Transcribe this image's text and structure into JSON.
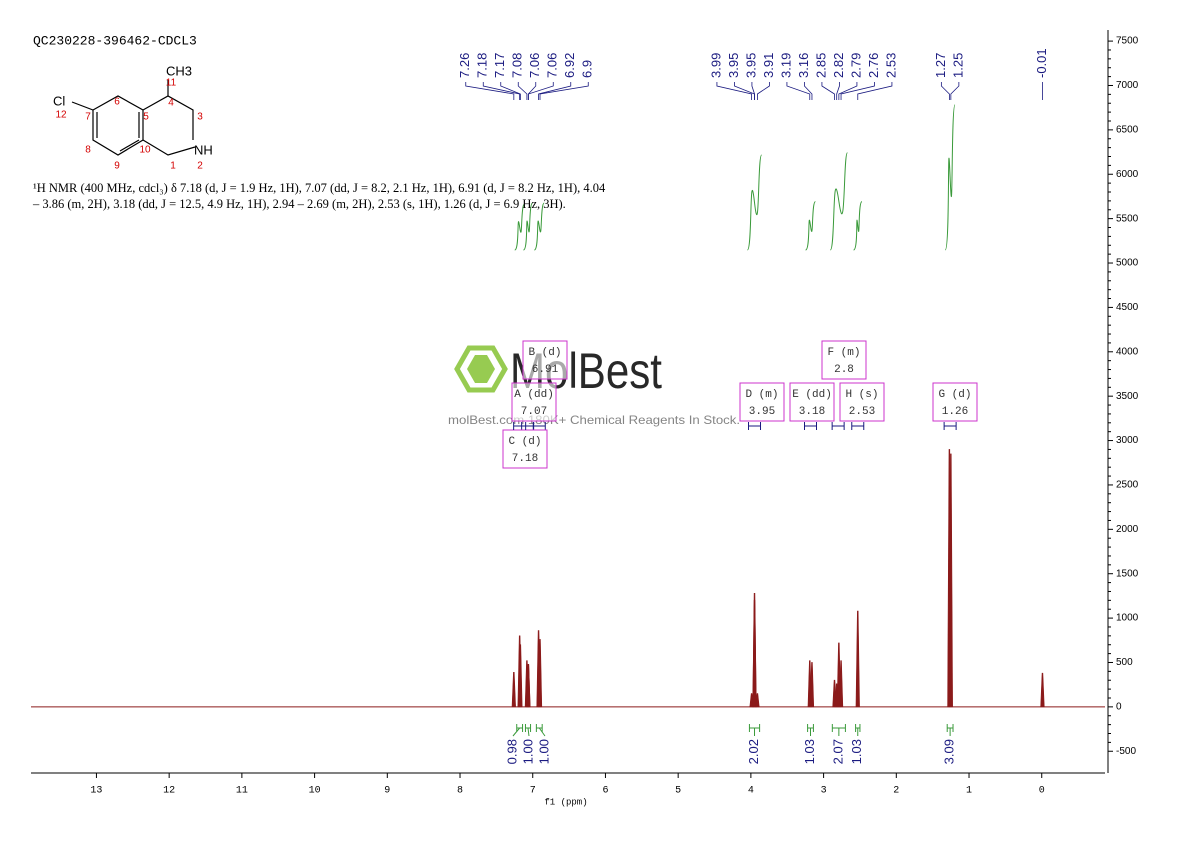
{
  "chart_data": {
    "type": "nmr",
    "title": "QC230228-396462-CDCL3",
    "description": "¹H NMR (400 MHz, cdcl₃) δ 7.18 (d, J = 1.9 Hz, 1H), 7.07 (dd, J = 8.2, 2.1 Hz, 1H), 6.91 (d, J = 8.2 Hz, 1H), 4.04 – 3.86 (m, 2H), 3.18 (dd, J = 12.5, 4.9 Hz, 1H), 2.94 – 2.69 (m, 2H), 2.53 (s, 1H), 1.26 (d, J = 6.9 Hz, 3H).",
    "structure": {
      "atoms": [
        "CH3",
        "Cl",
        "NH"
      ],
      "numbers": [
        "11",
        "12",
        "7",
        "6",
        "5",
        "4",
        "3",
        "8",
        "9",
        "10",
        "1",
        "2"
      ]
    },
    "watermark": {
      "brand": "MolBest",
      "tagline": "molBest.com 180K+ Chemical Reagents In Stock."
    },
    "x_label": "f1 (ppm)",
    "xlim": [
      13.9,
      -0.87
    ],
    "xticks": [
      13,
      12,
      11,
      10,
      9,
      8,
      7,
      6,
      5,
      4,
      3,
      2,
      1,
      0
    ],
    "ylim": [
      -745,
      7625
    ],
    "yticks": [
      -500,
      0,
      500,
      1000,
      1500,
      2000,
      2500,
      3000,
      3500,
      4000,
      4500,
      5000,
      5500,
      6000,
      6500,
      7000,
      7500
    ],
    "color": "#8b1a1a",
    "peaks": {
      "x": [
        7.26,
        7.18,
        7.17,
        7.08,
        7.06,
        7.06,
        6.92,
        6.9,
        3.99,
        3.95,
        3.95,
        3.91,
        3.19,
        3.16,
        2.85,
        2.82,
        2.79,
        2.76,
        2.53,
        1.27,
        1.25,
        -0.01
      ],
      "values": [
        390,
        800,
        700,
        520,
        480,
        480,
        860,
        760,
        150,
        1280,
        1200,
        150,
        520,
        500,
        300,
        260,
        720,
        520,
        1080,
        2900,
        2850,
        380
      ]
    },
    "integrals": {
      "ranges": [
        [
          7.22,
          7.14
        ],
        [
          7.1,
          7.03
        ],
        [
          6.95,
          6.87
        ],
        [
          4.02,
          3.88
        ],
        [
          3.22,
          3.14
        ],
        [
          2.88,
          2.7
        ],
        [
          2.56,
          2.5
        ],
        [
          1.3,
          1.22
        ]
      ],
      "values": [
        0.98,
        1,
        1,
        2.02,
        1.03,
        2.07,
        1.03,
        3.09
      ],
      "value_labels": [
        "0.98",
        "1.00",
        "1.00",
        "2.02",
        "1.03",
        "2.07",
        "1.03",
        "3.09"
      ]
    },
    "multiplets": [
      {
        "label": "A (dd)",
        "shift": 7.07
      },
      {
        "label": "B (d)",
        "shift": 6.91
      },
      {
        "label": "C (d)",
        "shift": 7.18
      },
      {
        "label": "D (m)",
        "shift": 3.95
      },
      {
        "label": "E (dd)",
        "shift": 3.18
      },
      {
        "label": "F (m)",
        "shift": 2.8
      },
      {
        "label": "H (s)",
        "shift": 2.53
      },
      {
        "label": "G (d)",
        "shift": 1.26
      }
    ]
  }
}
